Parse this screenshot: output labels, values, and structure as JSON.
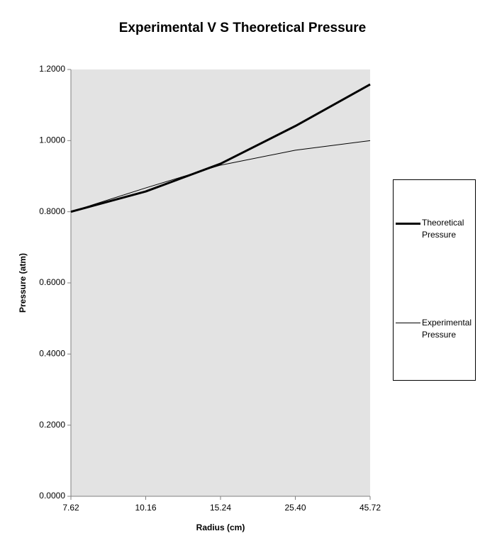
{
  "chart_data": {
    "type": "line",
    "title": "Experimental V S Theoretical Pressure",
    "x_label": "Radius (cm)",
    "y_label": "Pressure (atm)",
    "categories": [
      "7.62",
      "10.16",
      "15.24",
      "25.40",
      "45.72"
    ],
    "series": [
      {
        "name": "Theoretical Pressure",
        "color": "#000000",
        "line_width": 3,
        "values": [
          0.8,
          0.857,
          0.935,
          1.041,
          1.158
        ]
      },
      {
        "name": "Experimental Pressure",
        "color": "#000000",
        "line_width": 1,
        "values": [
          0.8,
          0.867,
          0.931,
          0.973,
          1.0
        ]
      }
    ],
    "ylim": [
      0,
      1.2
    ],
    "yticks": [
      {
        "value": 0,
        "label": "0.0000"
      },
      {
        "value": 0.2,
        "label": "0.2000"
      },
      {
        "value": 0.4,
        "label": "0.4000"
      },
      {
        "value": 0.6,
        "label": "0.6000"
      },
      {
        "value": 0.8,
        "label": "0.8000"
      },
      {
        "value": 1.0,
        "label": "1.0000"
      },
      {
        "value": 1.2,
        "label": "1.2000"
      }
    ],
    "grid": false,
    "legend": "right",
    "plot_background": "#e3e3e3"
  }
}
